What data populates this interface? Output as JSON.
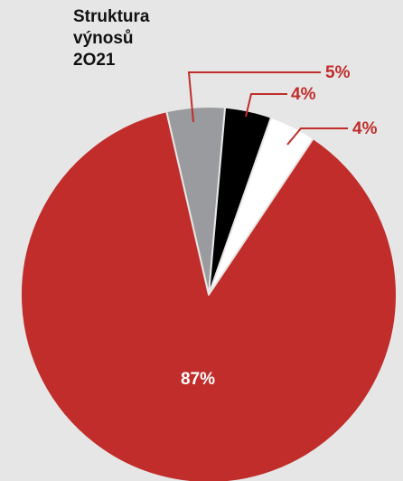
{
  "chart_data": {
    "type": "pie",
    "title_lines": [
      "Struktura",
      "výnosů",
      "2O21"
    ],
    "slices": [
      {
        "value": 5,
        "label": "5%",
        "color": "#9a9b9e"
      },
      {
        "value": 4,
        "label": "4%",
        "color": "#000000"
      },
      {
        "value": 4,
        "label": "4%",
        "color": "#ffffff"
      },
      {
        "value": 87,
        "label": "87%",
        "color": "#c02d2a"
      }
    ],
    "label_color_outside": "#c02d2a",
    "label_color_inside": "#ffffff",
    "background": "#e6e6e6"
  }
}
